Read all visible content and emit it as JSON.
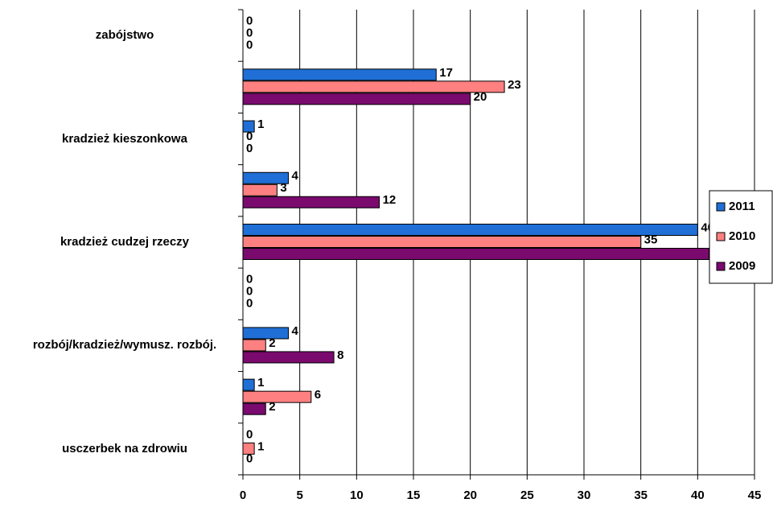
{
  "chart_data": {
    "type": "barh",
    "categories": [
      "zabójstwo",
      null,
      "kradzież kieszonkowa",
      null,
      "kradzież cudzej rzeczy",
      null,
      "rozbój/kradzież/wymusz. rozbój.",
      null,
      "usczerbek na zdrowiu"
    ],
    "series": [
      {
        "name": "2011",
        "color": "#1f6fd6",
        "values": [
          0,
          17,
          1,
          4,
          40,
          0,
          4,
          1,
          0
        ]
      },
      {
        "name": "2010",
        "color": "#ff8080",
        "values": [
          0,
          23,
          0,
          3,
          35,
          0,
          2,
          6,
          1
        ]
      },
      {
        "name": "2009",
        "color": "#7a0a6e",
        "values": [
          0,
          20,
          0,
          12,
          41,
          0,
          8,
          2,
          0
        ]
      }
    ],
    "xlim": [
      0,
      45
    ],
    "xticks": [
      0,
      5,
      10,
      15,
      20,
      25,
      30,
      35,
      40,
      45
    ],
    "grid": true,
    "legend": "right"
  }
}
